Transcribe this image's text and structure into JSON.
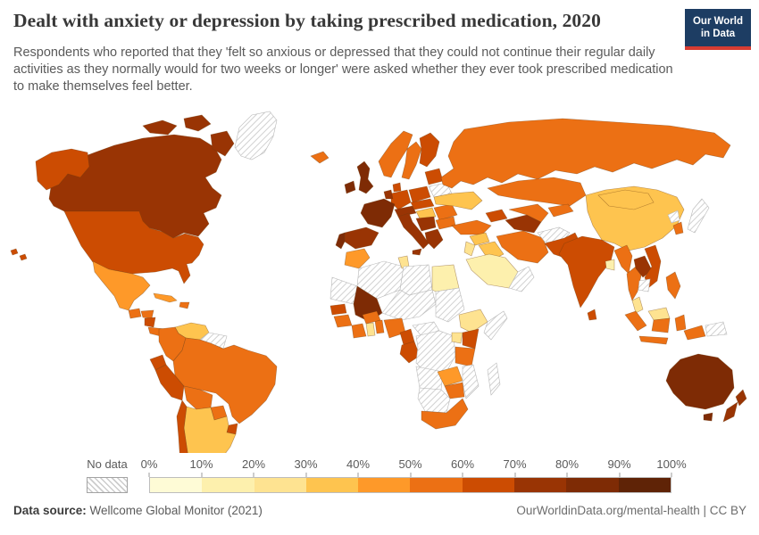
{
  "header": {
    "title": "Dealt with anxiety or depression by taking prescribed medication, 2020",
    "subtitle": "Respondents who reported that they 'felt so anxious or depressed that they could not continue their regular daily activities as they normally would for two weeks or longer' were asked whether they ever took prescribed medication to make themselves feel better."
  },
  "logo": {
    "line1": "Our World",
    "line2": "in Data",
    "bg": "#1d3d63",
    "accent": "#d73c32"
  },
  "legend": {
    "no_data_label": "No data",
    "ticks": [
      "0%",
      "10%",
      "20%",
      "30%",
      "40%",
      "50%",
      "60%",
      "70%",
      "80%",
      "90%",
      "100%"
    ],
    "colors": [
      "#fefbd6",
      "#fdf0ad",
      "#fee391",
      "#fec44f",
      "#fe9929",
      "#ec7014",
      "#cc4c02",
      "#993404",
      "#7e2b05",
      "#5f2306"
    ]
  },
  "footer": {
    "source_label": "Data source:",
    "source_value": " Wellcome Global Monitor (2021)",
    "right": "OurWorldinData.org/mental-health | CC BY"
  },
  "chart_data": {
    "type": "choropleth_map",
    "title": "Dealt with anxiety or depression by taking prescribed medication",
    "year": 2020,
    "unit": "% of respondents",
    "bins": [
      "0-10%",
      "10-20%",
      "20-30%",
      "30-40%",
      "40-50%",
      "50-60%",
      "60-70%",
      "70-80%",
      "80-90%",
      "90-100%"
    ],
    "no_data_style": "hatched",
    "countries": [
      {
        "id": "greenland",
        "name": "Greenland",
        "band": "No data",
        "bin": -1
      },
      {
        "id": "canada",
        "name": "Canada",
        "band": "70-80%",
        "bin": 7
      },
      {
        "id": "usa",
        "name": "United States",
        "band": "60-70%",
        "bin": 6
      },
      {
        "id": "mexico",
        "name": "Mexico",
        "band": "40-50%",
        "bin": 4
      },
      {
        "id": "guatemala",
        "name": "Guatemala",
        "band": "50-60%",
        "bin": 5
      },
      {
        "id": "honduras",
        "name": "Honduras",
        "band": "50-60%",
        "bin": 5
      },
      {
        "id": "nicaragua",
        "name": "Nicaragua",
        "band": "60-70%",
        "bin": 6
      },
      {
        "id": "costarica",
        "name": "Costa Rica & Panama",
        "band": "50-60%",
        "bin": 5
      },
      {
        "id": "cuba",
        "name": "Cuba",
        "band": "40-50%",
        "bin": 4
      },
      {
        "id": "hispaniola",
        "name": "Dominican Republic",
        "band": "50-60%",
        "bin": 5
      },
      {
        "id": "venezuela",
        "name": "Venezuela",
        "band": "30-40%",
        "bin": 3
      },
      {
        "id": "colombia",
        "name": "Colombia",
        "band": "50-60%",
        "bin": 5
      },
      {
        "id": "guyanas",
        "name": "Guyanas",
        "band": "No data",
        "bin": -1
      },
      {
        "id": "ecuador",
        "name": "Ecuador",
        "band": "60-70%",
        "bin": 6
      },
      {
        "id": "peru",
        "name": "Peru",
        "band": "60-70%",
        "bin": 6
      },
      {
        "id": "brazil",
        "name": "Brazil",
        "band": "50-60%",
        "bin": 5
      },
      {
        "id": "bolivia",
        "name": "Bolivia",
        "band": "50-60%",
        "bin": 5
      },
      {
        "id": "paraguay",
        "name": "Paraguay",
        "band": "50-60%",
        "bin": 5
      },
      {
        "id": "uruguay",
        "name": "Uruguay",
        "band": "60-70%",
        "bin": 6
      },
      {
        "id": "argentina",
        "name": "Argentina",
        "band": "30-40%",
        "bin": 3
      },
      {
        "id": "chile",
        "name": "Chile",
        "band": "60-70%",
        "bin": 6
      },
      {
        "id": "iceland",
        "name": "Iceland",
        "band": "50-60%",
        "bin": 5
      },
      {
        "id": "uk",
        "name": "United Kingdom",
        "band": "80-90%",
        "bin": 8
      },
      {
        "id": "ireland",
        "name": "Ireland",
        "band": "80-90%",
        "bin": 8
      },
      {
        "id": "norway",
        "name": "Norway",
        "band": "50-60%",
        "bin": 5
      },
      {
        "id": "sweden",
        "name": "Sweden",
        "band": "50-60%",
        "bin": 5
      },
      {
        "id": "finland",
        "name": "Finland",
        "band": "60-70%",
        "bin": 6
      },
      {
        "id": "denmark",
        "name": "Denmark",
        "band": "60-70%",
        "bin": 6
      },
      {
        "id": "baltics",
        "name": "Baltic states",
        "band": "60-70%",
        "bin": 6
      },
      {
        "id": "belarus",
        "name": "Belarus",
        "band": "No data",
        "bin": -1
      },
      {
        "id": "poland",
        "name": "Poland",
        "band": "60-70%",
        "bin": 6
      },
      {
        "id": "germany",
        "name": "Germany",
        "band": "60-70%",
        "bin": 6
      },
      {
        "id": "benelux",
        "name": "Belgium & Netherlands",
        "band": "70-80%",
        "bin": 7
      },
      {
        "id": "france",
        "name": "France",
        "band": "80-90%",
        "bin": 8
      },
      {
        "id": "spain",
        "name": "Spain",
        "band": "70-80%",
        "bin": 7
      },
      {
        "id": "portugal",
        "name": "Portugal",
        "band": "80-90%",
        "bin": 8
      },
      {
        "id": "italy",
        "name": "Italy",
        "band": "70-80%",
        "bin": 7
      },
      {
        "id": "alpine",
        "name": "Switzerland & Austria",
        "band": "70-80%",
        "bin": 7
      },
      {
        "id": "czechoslovakia",
        "name": "Czechia & Slovakia",
        "band": "60-70%",
        "bin": 6
      },
      {
        "id": "hungary",
        "name": "Hungary",
        "band": "30-40%",
        "bin": 3
      },
      {
        "id": "ukraine",
        "name": "Ukraine",
        "band": "30-40%",
        "bin": 3
      },
      {
        "id": "romania",
        "name": "Romania",
        "band": "50-60%",
        "bin": 5
      },
      {
        "id": "bulgaria",
        "name": "Bulgaria",
        "band": "50-60%",
        "bin": 5
      },
      {
        "id": "balkans",
        "name": "Serbia & Croatia",
        "band": "70-80%",
        "bin": 7
      },
      {
        "id": "greece",
        "name": "Greece",
        "band": "70-80%",
        "bin": 7
      },
      {
        "id": "russia",
        "name": "Russia",
        "band": "50-60%",
        "bin": 5
      },
      {
        "id": "turkey",
        "name": "Turkey",
        "band": "50-60%",
        "bin": 5
      },
      {
        "id": "caucasus",
        "name": "Georgia & Azerbaijan",
        "band": "60-70%",
        "bin": 6
      },
      {
        "id": "syria",
        "name": "Syria",
        "band": "30-40%",
        "bin": 3
      },
      {
        "id": "levant",
        "name": "Jordan & Israel",
        "band": "20-30%",
        "bin": 2
      },
      {
        "id": "iraq",
        "name": "Iraq",
        "band": "30-40%",
        "bin": 3
      },
      {
        "id": "saudi",
        "name": "Saudi Arabia",
        "band": "10-20%",
        "bin": 1
      },
      {
        "id": "yemenoman",
        "name": "Yemen & Oman",
        "band": "No data",
        "bin": -1
      },
      {
        "id": "iran",
        "name": "Iran",
        "band": "50-60%",
        "bin": 5
      },
      {
        "id": "turkmenistan",
        "name": "Turkmenistan",
        "band": "70-80%",
        "bin": 7
      },
      {
        "id": "uzbekistan",
        "name": "Uzbekistan",
        "band": "50-60%",
        "bin": 5
      },
      {
        "id": "kazakhstan",
        "name": "Kazakhstan",
        "band": "50-60%",
        "bin": 5
      },
      {
        "id": "kyrgyzstan",
        "name": "Kyrgyzstan & Tajikistan",
        "band": "50-60%",
        "bin": 5
      },
      {
        "id": "afghanistan",
        "name": "Afghanistan",
        "band": "No data",
        "bin": -1
      },
      {
        "id": "pakistan",
        "name": "Pakistan",
        "band": "60-70%",
        "bin": 6
      },
      {
        "id": "india",
        "name": "India",
        "band": "60-70%",
        "bin": 6
      },
      {
        "id": "bangladesh",
        "name": "Bangladesh",
        "band": "10-20%",
        "bin": 1
      },
      {
        "id": "srilanka",
        "name": "Sri Lanka",
        "band": "60-70%",
        "bin": 6
      },
      {
        "id": "china",
        "name": "China",
        "band": "30-40%",
        "bin": 3
      },
      {
        "id": "mongolia",
        "name": "Mongolia",
        "band": "30-40%",
        "bin": 3
      },
      {
        "id": "myanmar",
        "name": "Myanmar",
        "band": "50-60%",
        "bin": 5
      },
      {
        "id": "thailand",
        "name": "Thailand",
        "band": "50-60%",
        "bin": 5
      },
      {
        "id": "laos",
        "name": "Laos",
        "band": "70-80%",
        "bin": 7
      },
      {
        "id": "vietnam",
        "name": "Vietnam",
        "band": "60-70%",
        "bin": 6
      },
      {
        "id": "cambodia",
        "name": "Cambodia",
        "band": "No data",
        "bin": -1
      },
      {
        "id": "skorea",
        "name": "South Korea",
        "band": "50-60%",
        "bin": 5
      },
      {
        "id": "nkorea",
        "name": "North Korea",
        "band": "No data",
        "bin": -1
      },
      {
        "id": "japan",
        "name": "Japan",
        "band": "No data",
        "bin": -1
      },
      {
        "id": "malaysia",
        "name": "Malaysia",
        "band": "20-30%",
        "bin": 2
      },
      {
        "id": "indonesia",
        "name": "Indonesia",
        "band": "50-60%",
        "bin": 5
      },
      {
        "id": "philippines",
        "name": "Philippines",
        "band": "50-60%",
        "bin": 5
      },
      {
        "id": "png",
        "name": "Papua New Guinea",
        "band": "No data",
        "bin": -1
      },
      {
        "id": "australia",
        "name": "Australia",
        "band": "80-90%",
        "bin": 8
      },
      {
        "id": "nz",
        "name": "New Zealand",
        "band": "70-80%",
        "bin": 7
      },
      {
        "id": "morocco",
        "name": "Morocco",
        "band": "40-50%",
        "bin": 4
      },
      {
        "id": "algeria",
        "name": "Algeria",
        "band": "No data",
        "bin": -1
      },
      {
        "id": "tunisia",
        "name": "Tunisia",
        "band": "20-30%",
        "bin": 2
      },
      {
        "id": "libya",
        "name": "Libya",
        "band": "No data",
        "bin": -1
      },
      {
        "id": "egypt",
        "name": "Egypt",
        "band": "10-20%",
        "bin": 1
      },
      {
        "id": "mauritania",
        "name": "Mauritania & W. Sahara",
        "band": "No data",
        "bin": -1
      },
      {
        "id": "mali",
        "name": "Mali",
        "band": "80-90%",
        "bin": 8
      },
      {
        "id": "senegal",
        "name": "Senegal",
        "band": "60-70%",
        "bin": 6
      },
      {
        "id": "guinea",
        "name": "Guinea",
        "band": "50-60%",
        "bin": 5
      },
      {
        "id": "ivorycoast",
        "name": "Ivory Coast",
        "band": "50-60%",
        "bin": 5
      },
      {
        "id": "ghana",
        "name": "Ghana",
        "band": "20-30%",
        "bin": 2
      },
      {
        "id": "togobenin",
        "name": "Togo & Benin",
        "band": "50-60%",
        "bin": 5
      },
      {
        "id": "burkina",
        "name": "Burkina Faso",
        "band": "50-60%",
        "bin": 5
      },
      {
        "id": "nigeria",
        "name": "Nigeria",
        "band": "50-60%",
        "bin": 5
      },
      {
        "id": "nigerchad",
        "name": "Niger & Chad",
        "band": "No data",
        "bin": -1
      },
      {
        "id": "sudan",
        "name": "Sudan",
        "band": "No data",
        "bin": -1
      },
      {
        "id": "cameroon",
        "name": "Cameroon",
        "band": "60-70%",
        "bin": 6
      },
      {
        "id": "gaboncongo",
        "name": "Gabon & Congo",
        "band": "60-70%",
        "bin": 6
      },
      {
        "id": "car",
        "name": "Central African Republic",
        "band": "No data",
        "bin": -1
      },
      {
        "id": "drc",
        "name": "DR Congo",
        "band": "No data",
        "bin": -1
      },
      {
        "id": "ethiopia",
        "name": "Ethiopia",
        "band": "20-30%",
        "bin": 2
      },
      {
        "id": "somalia",
        "name": "Somalia",
        "band": "No data",
        "bin": -1
      },
      {
        "id": "kenya",
        "name": "Kenya",
        "band": "60-70%",
        "bin": 6
      },
      {
        "id": "uganda",
        "name": "Uganda",
        "band": "20-30%",
        "bin": 2
      },
      {
        "id": "tanzania",
        "name": "Tanzania",
        "band": "50-60%",
        "bin": 5
      },
      {
        "id": "angola",
        "name": "Angola",
        "band": "No data",
        "bin": -1
      },
      {
        "id": "zambia",
        "name": "Zambia",
        "band": "40-50%",
        "bin": 4
      },
      {
        "id": "mozambique",
        "name": "Mozambique",
        "band": "No data",
        "bin": -1
      },
      {
        "id": "zimbabwe",
        "name": "Zimbabwe",
        "band": "50-60%",
        "bin": 5
      },
      {
        "id": "namibiabotswana",
        "name": "Namibia & Botswana",
        "band": "No data",
        "bin": -1
      },
      {
        "id": "southafrica",
        "name": "South Africa",
        "band": "50-60%",
        "bin": 5
      },
      {
        "id": "madagascar",
        "name": "Madagascar",
        "band": "No data",
        "bin": -1
      }
    ]
  }
}
